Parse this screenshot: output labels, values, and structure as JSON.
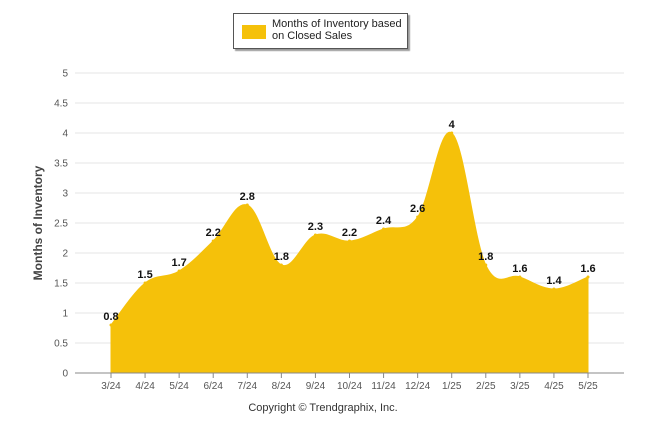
{
  "chart_data": {
    "type": "area",
    "categories": [
      "3/24",
      "4/24",
      "5/24",
      "6/24",
      "7/24",
      "8/24",
      "9/24",
      "10/24",
      "11/24",
      "12/24",
      "1/25",
      "2/25",
      "3/25",
      "4/25",
      "5/25"
    ],
    "series": [
      {
        "name": "Months of Inventory based on Closed Sales",
        "values": [
          0.8,
          1.5,
          1.7,
          2.2,
          2.8,
          1.8,
          2.3,
          2.2,
          2.4,
          2.6,
          4,
          1.8,
          1.6,
          1.4,
          1.6
        ],
        "labels": [
          "0.8",
          "1.5",
          "1.7",
          "2.2",
          "2.8",
          "1.8",
          "2.3",
          "2.2",
          "2.4",
          "2.6",
          "4",
          "1.8",
          "1.6",
          "1.4",
          "1.6"
        ],
        "color": "#f5c10a"
      }
    ],
    "ylabel": "Months of Inventory",
    "xlabel": "",
    "ylim": [
      0,
      5
    ],
    "yticks": [
      "0",
      "0.5",
      "1",
      "1.5",
      "2",
      "2.5",
      "3",
      "3.5",
      "4",
      "4.5",
      "5"
    ],
    "grid": true,
    "legend_position": "top-center"
  },
  "legend": {
    "label": "Months of Inventory based on Closed Sales"
  },
  "footer": {
    "copyright": "Copyright © Trendgraphix, Inc."
  },
  "colors": {
    "area": "#f5c10a",
    "grid": "#e6e6e6",
    "axis": "#888888"
  }
}
